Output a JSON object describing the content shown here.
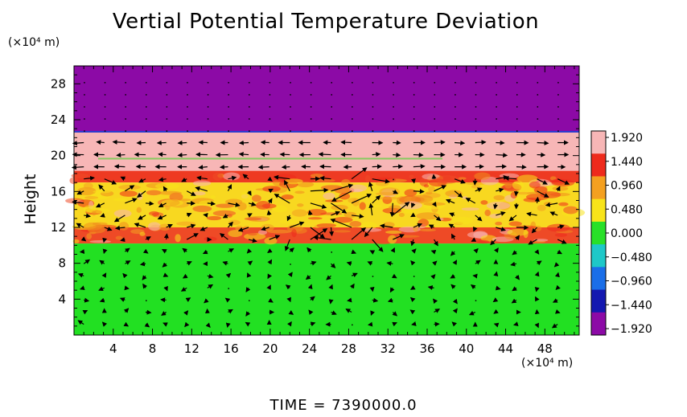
{
  "chart_data": {
    "type": "heatmap",
    "title": "Vertial Potential Temperature Deviation",
    "ylabel": "Height",
    "xlabel": "",
    "x_unit": "(×10⁴ m)",
    "y_unit": "(×10⁴ m)",
    "footer": "TIME  =  7390000.0",
    "xlim": [
      0,
      51.5
    ],
    "ylim": [
      0,
      30
    ],
    "x_ticks": [
      4,
      8,
      12,
      16,
      20,
      24,
      28,
      32,
      36,
      40,
      44,
      48
    ],
    "y_ticks": [
      4,
      8,
      12,
      16,
      20,
      24,
      28
    ],
    "colorbar": {
      "range": [
        -1.92,
        1.92
      ],
      "labels": [
        "1.920",
        "1.440",
        "0.960",
        "0.480",
        "0.000",
        "-0.480",
        "-0.960",
        "-1.440",
        "-1.920"
      ],
      "colors": [
        "#f7b6b6",
        "#ee2a1c",
        "#f4a020",
        "#f8e41a",
        "#28e028",
        "#1ec8c8",
        "#1a6ee8",
        "#1418b0",
        "#8c0aa6"
      ]
    },
    "layers": [
      {
        "y0": 22.7,
        "y1": 30.0,
        "value": -1.92,
        "color": "#8c0aa6"
      },
      {
        "y0": 18.3,
        "y1": 22.7,
        "value": 1.92,
        "color": "#f7b6b6"
      },
      {
        "y0": 17.0,
        "y1": 18.3,
        "value": 1.44,
        "color": "#ee3a22"
      },
      {
        "y0": 12.0,
        "y1": 17.0,
        "value": 0.96,
        "color": "#f8d820"
      },
      {
        "y0": 10.2,
        "y1": 12.0,
        "value": 1.44,
        "color": "#ee4a26"
      },
      {
        "y0": 0.0,
        "y1": 10.2,
        "value": 0.0,
        "color": "#22e022"
      }
    ]
  }
}
